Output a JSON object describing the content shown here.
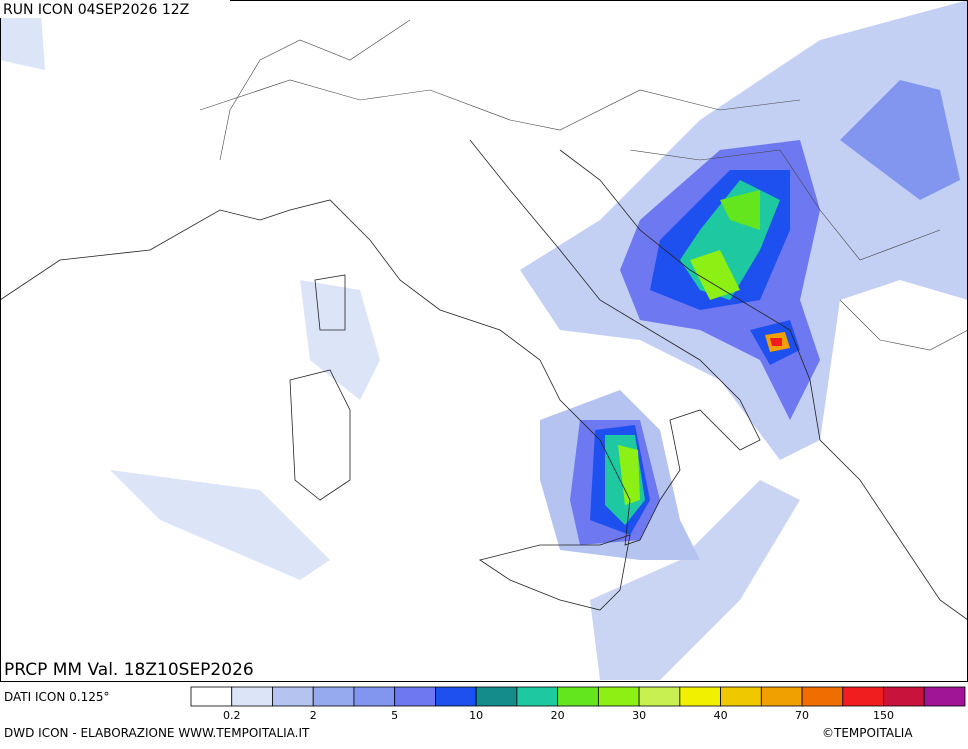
{
  "header": {
    "run": "RUN ICON 04SEP2026 12Z"
  },
  "map": {
    "validity": "PRCP MM Val. 18Z10SEP2026"
  },
  "legend": {
    "source": "DATI ICON 0.125°",
    "colors": [
      "#ffffff",
      "#dce4f8",
      "#b4c3f0",
      "#96aaf0",
      "#8296f0",
      "#6e78f0",
      "#1e50f0",
      "#148c8c",
      "#1ec8a0",
      "#64e61e",
      "#8cf014",
      "#c8f050",
      "#f0f000",
      "#f0c800",
      "#f0a000",
      "#f06e00",
      "#f01e1e",
      "#c8143c",
      "#a01496"
    ],
    "labels": [
      "0.2",
      "2",
      "5",
      "10",
      "20",
      "30",
      "40",
      "70",
      "150"
    ]
  },
  "footer": {
    "credit": "DWD ICON - ELABORAZIONE WWW.TEMPOITALIA.IT",
    "brand": "©TEMPOITALIA"
  }
}
